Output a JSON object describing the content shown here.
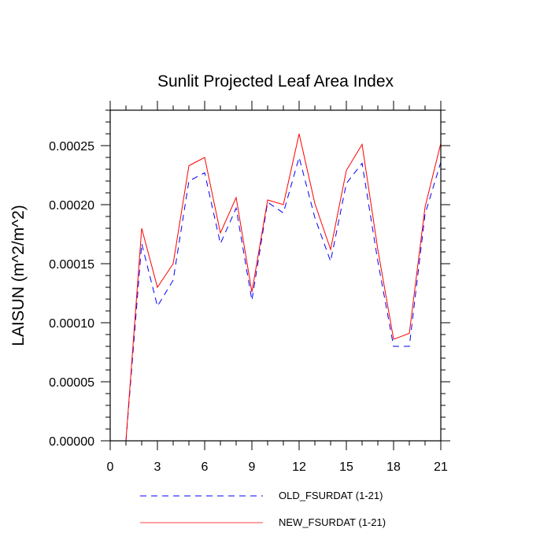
{
  "chart_data": {
    "type": "line",
    "title": "Sunlit Projected Leaf Area Index",
    "xlabel": "",
    "ylabel": "LAISUN  (m^2/m^2)",
    "xlim": [
      0,
      21
    ],
    "ylim": [
      0,
      0.00028
    ],
    "grid": false,
    "x_ticks": [
      0,
      3,
      6,
      9,
      12,
      15,
      18,
      21
    ],
    "x_tick_labels": [
      "0",
      "3",
      "6",
      "9",
      "12",
      "15",
      "18",
      "21"
    ],
    "y_ticks": [
      0,
      5e-05,
      0.0001,
      0.00015,
      0.0002,
      0.00025
    ],
    "y_tick_labels": [
      "0.00000",
      "0.00005",
      "0.00010",
      "0.00015",
      "0.00020",
      "0.00025"
    ],
    "legend_position": "bottom",
    "x": [
      1,
      2,
      3,
      4,
      5,
      6,
      7,
      8,
      9,
      10,
      11,
      12,
      13,
      14,
      15,
      16,
      17,
      18,
      19,
      20,
      21
    ],
    "series": [
      {
        "name": "OLD_FSURDAT (1-21)",
        "color": "#0000ff",
        "style": "dashed",
        "values": [
          0.0,
          0.000167,
          0.000114,
          0.000136,
          0.00022,
          0.000227,
          0.000167,
          0.000197,
          0.000119,
          0.000202,
          0.000193,
          0.00024,
          0.000189,
          0.000152,
          0.000218,
          0.000235,
          0.000152,
          8e-05,
          8e-05,
          0.000192,
          0.000236
        ]
      },
      {
        "name": "NEW_FSURDAT (1-21)",
        "color": "#ff0000",
        "style": "solid",
        "values": [
          0.0,
          0.00018,
          0.00013,
          0.00015,
          0.000233,
          0.00024,
          0.000176,
          0.000206,
          0.000126,
          0.000204,
          0.0002,
          0.00026,
          0.000201,
          0.000162,
          0.000229,
          0.000251,
          0.000162,
          8.6e-05,
          9.1e-05,
          0.000198,
          0.000252
        ]
      }
    ]
  }
}
